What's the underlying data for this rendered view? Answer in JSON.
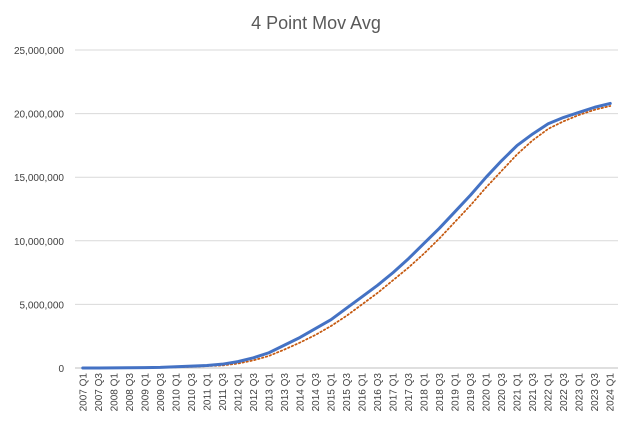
{
  "chart_data": {
    "type": "line",
    "title": "4 Point Mov Avg",
    "xlabel": "",
    "ylabel": "",
    "ylim": [
      0,
      25000000
    ],
    "y_ticks": [
      0,
      5000000,
      10000000,
      15000000,
      20000000,
      25000000
    ],
    "y_tick_labels": [
      "0",
      "5,000,000",
      "10,000,000",
      "15,000,000",
      "20,000,000",
      "25,000,000"
    ],
    "grid": "horizontal",
    "legend": "none",
    "categories": [
      "2007 Q1",
      "2007 Q3",
      "2008 Q1",
      "2008 Q3",
      "2009 Q1",
      "2009 Q3",
      "2010 Q1",
      "2010 Q3",
      "2011 Q1",
      "2011 Q3",
      "2012 Q1",
      "2012 Q3",
      "2013 Q1",
      "2013 Q3",
      "2014 Q1",
      "2014 Q3",
      "2015 Q1",
      "2015 Q3",
      "2016 Q1",
      "2016 Q3",
      "2017 Q1",
      "2017 Q3",
      "2018 Q1",
      "2018 Q3",
      "2019 Q1",
      "2019 Q3",
      "2020 Q1",
      "2020 Q3",
      "2021 Q1",
      "2021 Q3",
      "2022 Q1",
      "2022 Q3",
      "2023 Q1",
      "2023 Q3",
      "2024 Q1"
    ],
    "series": [
      {
        "color": "#4472C4",
        "style": "solid",
        "values": [
          0,
          5000,
          10000,
          20000,
          30000,
          50000,
          100000,
          150000,
          200000,
          300000,
          500000,
          800000,
          1200000,
          1800000,
          2400000,
          3100000,
          3800000,
          4700000,
          5600000,
          6500000,
          7500000,
          8600000,
          9800000,
          11000000,
          12300000,
          13600000,
          15000000,
          16300000,
          17500000,
          18400000,
          19200000,
          19700000,
          20100000,
          20500000,
          20800000
        ]
      },
      {
        "color": "#C55A11",
        "style": "dotted",
        "values": [
          0,
          3000,
          6000,
          12000,
          20000,
          35000,
          60000,
          100000,
          150000,
          200000,
          350000,
          600000,
          950000,
          1450000,
          2000000,
          2600000,
          3300000,
          4100000,
          5000000,
          5900000,
          6900000,
          7900000,
          9000000,
          10200000,
          11500000,
          12800000,
          14200000,
          15500000,
          16800000,
          17900000,
          18800000,
          19400000,
          19900000,
          20300000,
          20600000
        ]
      }
    ]
  }
}
